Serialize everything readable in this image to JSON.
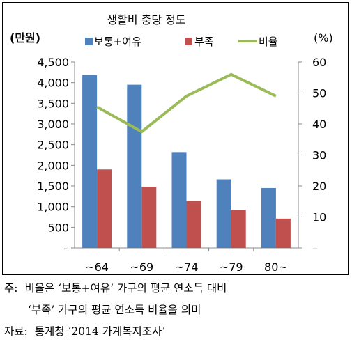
{
  "chart_data": {
    "type": "bar",
    "title": "생활비 충당 정도",
    "left_unit": "(만원)",
    "right_unit": "(%)",
    "categories": [
      "~64",
      "~69",
      "~74",
      "~79",
      "80~"
    ],
    "y_left": {
      "ylim": [
        0,
        4500
      ],
      "ticks": [
        0,
        500,
        1000,
        1500,
        2000,
        2500,
        3000,
        3500,
        4000,
        4500
      ],
      "tick_labels": [
        "–",
        "500",
        "1,000",
        "1,500",
        "2,000",
        "2,500",
        "3,000",
        "3,500",
        "4,000",
        "4,500"
      ]
    },
    "y_right": {
      "ylim": [
        0,
        60
      ],
      "ticks": [
        0,
        10,
        20,
        30,
        40,
        50,
        60
      ],
      "tick_labels": [
        "–",
        "10",
        "20",
        "30",
        "40",
        "50",
        "60"
      ]
    },
    "series": [
      {
        "name": "보통+여유",
        "type": "bar",
        "axis": "left",
        "color": "#4F81BD",
        "values": [
          4180,
          3950,
          2320,
          1660,
          1450
        ]
      },
      {
        "name": "부족",
        "type": "bar",
        "axis": "left",
        "color": "#C0504D",
        "values": [
          1900,
          1480,
          1140,
          920,
          710
        ]
      },
      {
        "name": "비율",
        "type": "line",
        "axis": "right",
        "color": "#9BBB59",
        "values": [
          45.5,
          37.5,
          49,
          56,
          49
        ]
      }
    ],
    "legend": "top",
    "grid": false
  },
  "notes": {
    "note1_prefix": "주:",
    "note1_text": "비율은 ‘보통+여유’ 가구의 평균 연소득 대비",
    "note2_text": "‘부족’ 가구의 평균 연소득 비율을 의미",
    "source_prefix": "자료:",
    "source_text": "통계청 ‘2014 가계복지조사’"
  }
}
